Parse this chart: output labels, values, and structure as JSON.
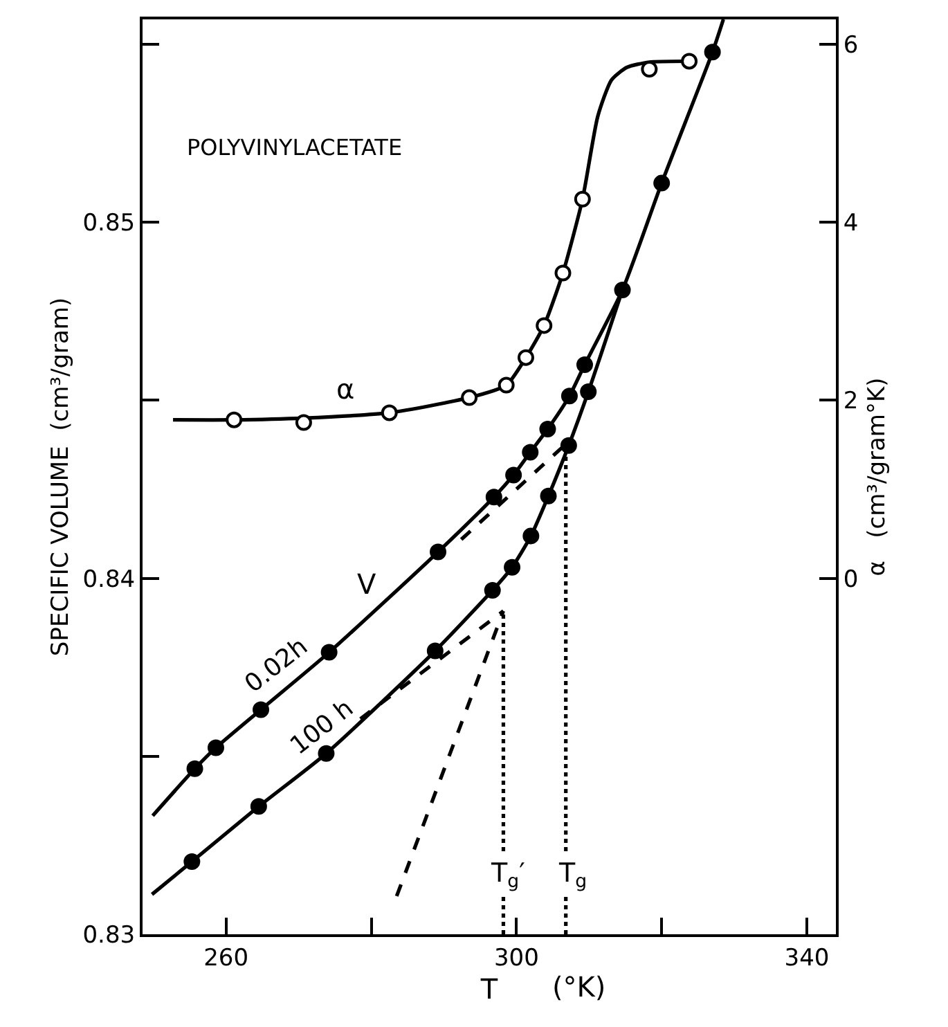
{
  "chart_data": {
    "type": "line",
    "xlabel": "T",
    "ylabel": "SPECIFIC VOLUME  (cm³/gram)",
    "y2label": "α   (cm³/gram°K)",
    "xlim": [
      248.5,
      344
    ],
    "xticks": [
      260,
      {
        "value": 280,
        "label": null
      },
      300,
      {
        "value": 320,
        "label": null
      },
      340
    ],
    "ylim": [
      0.83,
      0.8557
    ],
    "yticks": [
      0.83,
      {
        "value": 0.835,
        "label": null
      },
      0.84,
      {
        "value": 0.845,
        "label": null
      },
      0.85,
      {
        "value": 0.855,
        "label": null
      }
    ],
    "y2lim": [
      -4,
      6.28
    ],
    "y2ticks": [
      0,
      2,
      4,
      6
    ],
    "series": [
      {
        "axis": "y2",
        "marker": "none",
        "line_style": "solid",
        "color": "#000000",
        "x": [
          252.7,
          261.1,
          270.7,
          282.5,
          293.5,
          298.6,
          301.3,
          303.8,
          306.4,
          309.1,
          311.2,
          313.1,
          315.2,
          318.3,
          323.8,
          324.7
        ],
        "values": [
          1.78,
          1.78,
          1.8,
          1.86,
          2.03,
          2.17,
          2.48,
          2.84,
          3.43,
          4.26,
          5.19,
          5.6,
          5.74,
          5.8,
          5.81,
          5.81
        ]
      },
      {
        "type": "scatter",
        "axis": "y2",
        "marker": "circle",
        "color": "#ffffff",
        "x": [
          261.1,
          270.7,
          282.5,
          293.5,
          298.6,
          301.3,
          303.8,
          306.4,
          309.1,
          318.3,
          323.8
        ],
        "values": [
          1.78,
          1.75,
          1.86,
          2.03,
          2.17,
          2.48,
          2.84,
          3.43,
          4.26,
          5.72,
          5.81
        ]
      },
      {
        "marker": "none",
        "line_style": "solid",
        "color": "#000000",
        "x": [
          249.9,
          255.7,
          258.6,
          264.8,
          274.2,
          289.2,
          296.9,
          299.6,
          301.9,
          304.3,
          307.3,
          309.4,
          314.6,
          320.0,
          327.0,
          328.5
        ],
        "values": [
          0.83333,
          0.83465,
          0.83524,
          0.83631,
          0.83792,
          0.84074,
          0.84228,
          0.8429,
          0.84354,
          0.84419,
          0.84512,
          0.846,
          0.8481,
          0.8511,
          0.85478,
          0.8557
        ]
      },
      {
        "type": "scatter",
        "marker": "circle",
        "color": "#000000",
        "x": [
          255.7,
          258.6,
          264.8,
          274.2,
          289.2,
          296.9,
          299.6,
          301.9,
          304.3,
          307.3,
          309.4,
          314.6,
          320.0,
          327.0
        ],
        "values": [
          0.83465,
          0.83524,
          0.83631,
          0.83792,
          0.84074,
          0.84228,
          0.8429,
          0.84354,
          0.84419,
          0.84512,
          0.846,
          0.8481,
          0.8511,
          0.85478
        ]
      },
      {
        "marker": "none",
        "line_style": "solid",
        "color": "#000000",
        "x": [
          249.8,
          255.3,
          264.5,
          273.8,
          288.8,
          296.7,
          299.4,
          302.0,
          304.4,
          307.2,
          309.9,
          314.6
        ],
        "values": [
          0.83112,
          0.83204,
          0.83359,
          0.83508,
          0.83796,
          0.83966,
          0.84031,
          0.84119,
          0.84231,
          0.84373,
          0.84524,
          0.8481
        ]
      },
      {
        "type": "scatter",
        "marker": "circle",
        "color": "#000000",
        "x": [
          255.3,
          264.5,
          273.8,
          288.8,
          296.7,
          299.4,
          302.0,
          304.4,
          307.2,
          309.9
        ],
        "values": [
          0.83204,
          0.83359,
          0.83508,
          0.83796,
          0.83966,
          0.84031,
          0.84119,
          0.84231,
          0.84373,
          0.84524
        ]
      },
      {
        "type": "line",
        "marker": "none",
        "line_style": "dashed",
        "color": "#000000",
        "x": [
          292.4,
          306.8
        ],
        "values": [
          0.84109,
          0.84377
        ]
      },
      {
        "type": "line",
        "marker": "none",
        "line_style": "dashed",
        "color": "#000000",
        "x": [
          278.5,
          298.2
        ],
        "values": [
          0.83605,
          0.83908
        ]
      },
      {
        "type": "line",
        "marker": "none",
        "line_style": "dashed",
        "color": "#000000",
        "x": [
          283.5,
          298.2
        ],
        "values": [
          0.83107,
          0.83908
        ]
      },
      {
        "type": "line",
        "marker": "none",
        "line_style": "dotted",
        "color": "#000000",
        "x": [
          298.2,
          298.2
        ],
        "values": [
          0.83,
          0.83908
        ]
      },
      {
        "type": "line",
        "marker": "none",
        "line_style": "dotted",
        "color": "#000000",
        "x": [
          306.8,
          306.8
        ],
        "values": [
          0.83,
          0.84377
        ]
      }
    ],
    "annotations": [
      "POLYVINYLACETATE",
      "(°K)",
      "α",
      "V",
      "0.02h",
      "100 h",
      {
        "text": "T$_{g}$′",
        "x": 298.7,
        "y": 0.83167
      },
      {
        "text": "T$_{g}$",
        "x": 307.6,
        "y": 0.83167
      }
    ]
  }
}
